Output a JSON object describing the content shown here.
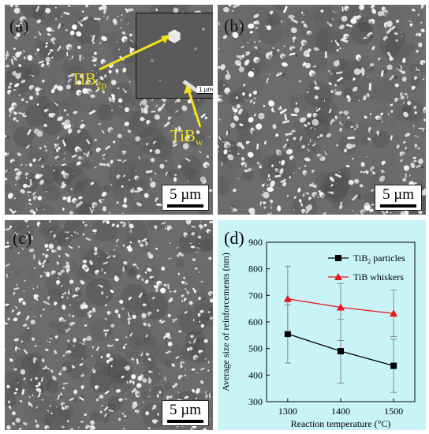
{
  "panels": {
    "a": {
      "label": "(a)",
      "scale_text": "5 µm",
      "inset_scale_text": "1 µm",
      "annotation_particle_main": "TiB",
      "annotation_particle_sub": "2p",
      "annotation_whisker_main": "TiB",
      "annotation_whisker_sub": "w"
    },
    "b": {
      "label": "(b)",
      "scale_text": "5 µm"
    },
    "c": {
      "label": "(c)",
      "scale_text": "5 µm"
    },
    "d": {
      "label": "(d)"
    }
  },
  "colors": {
    "annotation": "#f2e21a",
    "series_particles": "#000000",
    "series_whiskers": "#e8141a",
    "chart_background": "#c8f4f8"
  },
  "chart_data": {
    "type": "line",
    "xlabel": "Reaction temperature (°C)",
    "ylabel": "Average size of reinforcements (nm)",
    "x": [
      1300,
      1400,
      1500
    ],
    "xticks": [
      1300,
      1400,
      1500
    ],
    "yticks": [
      300,
      400,
      500,
      600,
      700,
      800,
      900
    ],
    "xlim": [
      1260,
      1540
    ],
    "ylim": [
      300,
      900
    ],
    "legend_position": "top-right",
    "series": [
      {
        "name": "TiB$_2$ particles",
        "name_main": "TiB",
        "name_sub": "2",
        "name_rest": " particles",
        "marker": "square",
        "values": [
          555,
          490,
          435
        ],
        "error_low": [
          445,
          370,
          335
        ],
        "error_high": [
          665,
          610,
          535
        ]
      },
      {
        "name": "TiB whiskers",
        "marker": "triangle",
        "values": [
          687,
          655,
          632
        ],
        "error_low": [
          565,
          530,
          545
        ],
        "error_high": [
          810,
          745,
          720
        ]
      }
    ]
  }
}
